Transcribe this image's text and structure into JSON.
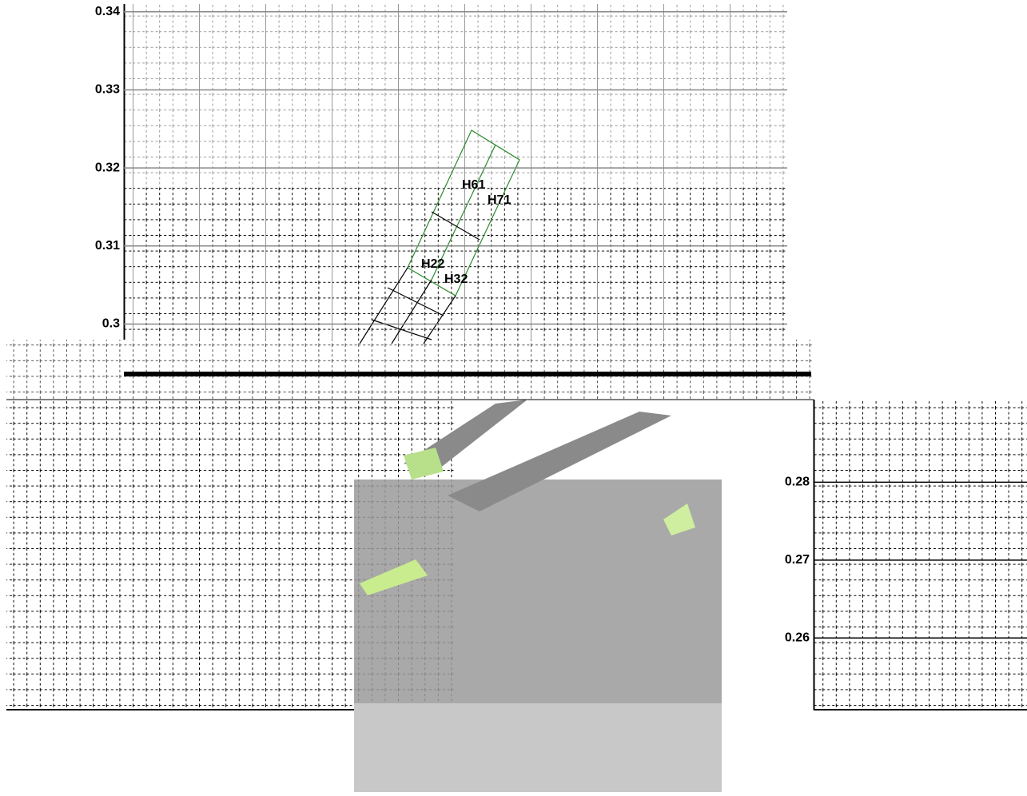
{
  "main_chart": {
    "ylim": [
      0.298,
      0.341
    ],
    "yticks": [
      0.34,
      0.33,
      0.32,
      0.31,
      0.3
    ],
    "regions": [
      {
        "label": "H61"
      },
      {
        "label": "H71"
      },
      {
        "label": "H22"
      },
      {
        "label": "H32"
      }
    ]
  },
  "inset_chart": {
    "ylim": [
      0.2508,
      0.2906
    ],
    "yticks": [
      0.28,
      0.27,
      0.26
    ]
  }
}
